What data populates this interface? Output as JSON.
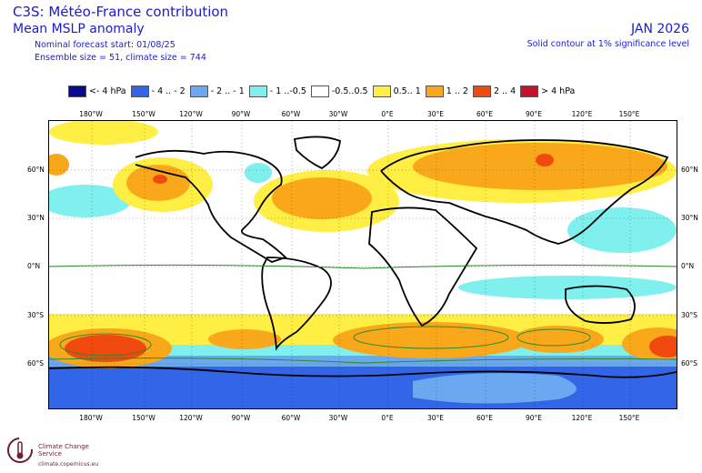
{
  "header": {
    "title": "C3S: Météo-France contribution",
    "subtitle": "Mean MSLP anomaly",
    "forecast_start": "Nominal forecast start: 01/08/25",
    "ensemble_size": "Ensemble size = 51, climate size = 744",
    "period": "JAN 2026",
    "significance_note": "Solid contour at 1% significance level"
  },
  "legend": [
    {
      "label": "<- 4 hPa",
      "color": "#0a0a8c"
    },
    {
      "label": "- 4 .. - 2",
      "color": "#3366e6"
    },
    {
      "label": "- 2 .. - 1",
      "color": "#6aa8f0"
    },
    {
      "label": "- 1 ..-0.5",
      "color": "#7ff0ee"
    },
    {
      "label": "-0.5..0.5",
      "color": "#ffffff"
    },
    {
      "label": "0.5.. 1",
      "color": "#ffee44"
    },
    {
      "label": "1 .. 2",
      "color": "#f8a81a"
    },
    {
      "label": "2 .. 4",
      "color": "#f04a10"
    },
    {
      "label": "> 4 hPa",
      "color": "#c8102e"
    }
  ],
  "axes": {
    "lon_labels": [
      "180°W",
      "150°W",
      "120°W",
      "90°W",
      "60°W",
      "30°W",
      "0°E",
      "30°E",
      "60°E",
      "90°E",
      "120°E",
      "150°E"
    ],
    "lat_labels": [
      "60°N",
      "30°N",
      "0°N",
      "30°S",
      "60°S"
    ]
  },
  "footer": {
    "logo_name": "Climate Change Service",
    "logo_url": "climate.copernicus.eu"
  }
}
